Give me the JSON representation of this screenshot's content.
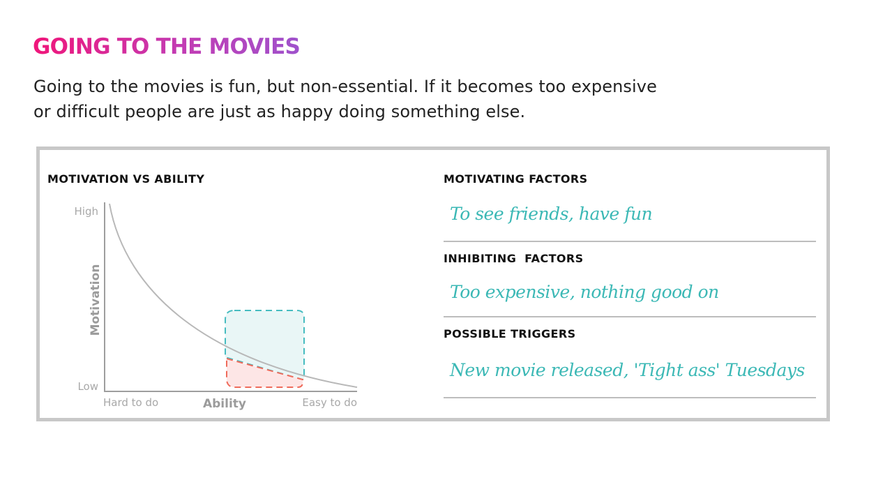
{
  "header": {
    "title": "GOING TO THE MOVIES",
    "subtitle": "Going to the movies is fun, but non-essential. If it becomes too expensive or difficult people are just as happy doing something else."
  },
  "chart": {
    "heading": "MOTIVATION VS ABILITY",
    "y_axis": {
      "label": "Motivation",
      "high": "High",
      "low": "Low"
    },
    "x_axis": {
      "label": "Ability",
      "left": "Hard to do",
      "right": "Easy to do"
    }
  },
  "factors": {
    "motivating": {
      "heading": "MOTIVATING FACTORS",
      "text": "To see friends, have fun"
    },
    "inhibiting": {
      "heading": "INHIBITING  FACTORS",
      "text": "Too expensive, nothing good on"
    },
    "triggers": {
      "heading": "POSSIBLE TRIGGERS",
      "text": "New movie released, 'Tight ass' Tuesdays"
    }
  },
  "colors": {
    "title_gradient": [
      "#f0167a",
      "#c33bb3",
      "#9f52cc"
    ],
    "teal": "#3bb8b5",
    "red": "#ef6b5b",
    "frame": "#c8c8c8"
  }
}
